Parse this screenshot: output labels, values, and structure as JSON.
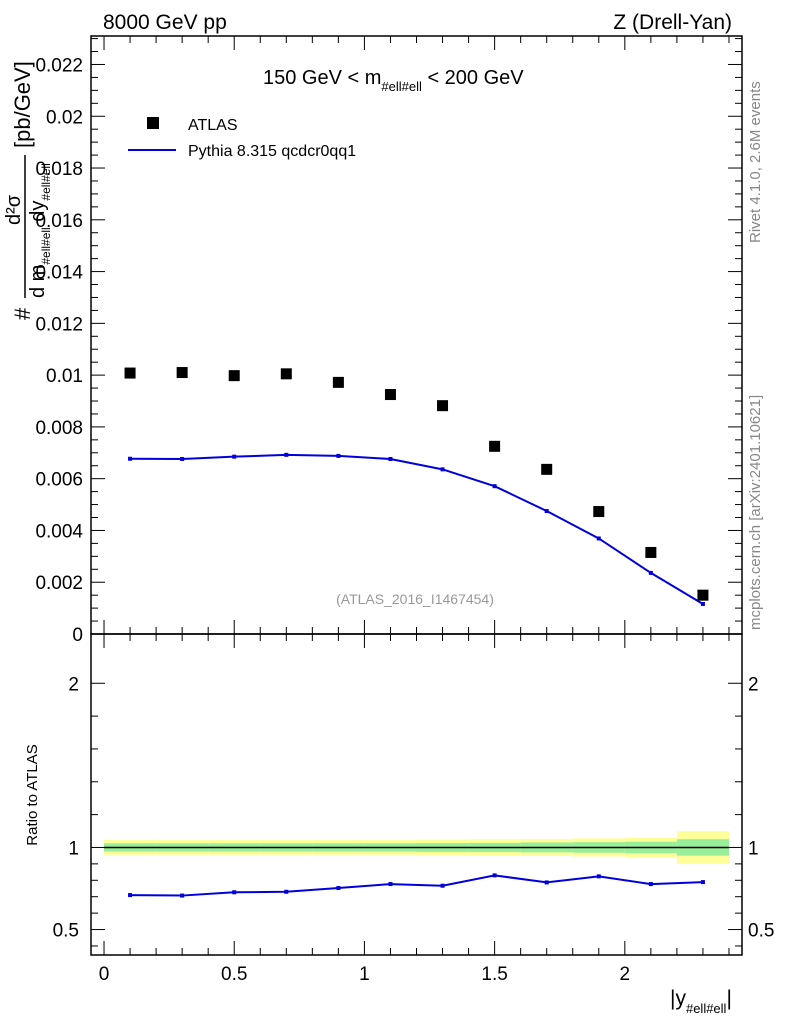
{
  "header": {
    "left": "8000 GeV pp",
    "right": "Z (Drell-Yan)"
  },
  "side_labels": {
    "rivet": "Rivet 4.1.0,  2.6M events",
    "mcplots": "mcplots.cern.ch [arXiv:2401.10621]"
  },
  "chart_data": [
    {
      "type": "scatter",
      "panel": "main",
      "title": "150 GeV < m_{#ell#ell} < 200 GeV",
      "title_parts": {
        "pre": "150 GeV < m",
        "sub": "#ell#ell",
        "post": " < 200 GeV"
      },
      "watermark": "(ATLAS_2016_I1467454)",
      "ylabel_parts": {
        "hash": "#",
        "num": "d²σ",
        "den_a": "d m",
        "den_sub_a": "#ell#ell",
        "den_b": " dy",
        "den_sub_b": "#ell#ell",
        "unit": "[pb/GeV]"
      },
      "xlim": [
        -0.05,
        2.45
      ],
      "ylim": [
        0,
        0.0231
      ],
      "yticks": [
        0,
        0.002,
        0.004,
        0.006,
        0.008,
        0.01,
        0.012,
        0.014,
        0.016,
        0.018,
        0.02,
        0.022
      ],
      "ytick_labels": [
        "0",
        "0.002",
        "0.004",
        "0.006",
        "0.008",
        "0.01",
        "0.012",
        "0.014",
        "0.016",
        "0.018",
        "0.02",
        "0.022"
      ],
      "legend": {
        "position": "top-left",
        "entries": [
          "ATLAS",
          "Pythia 8.315 qcdcr0qq1"
        ]
      },
      "series": [
        {
          "name": "ATLAS",
          "style": "markers",
          "color": "#000000",
          "x": [
            0.1,
            0.3,
            0.5,
            0.7,
            0.9,
            1.1,
            1.3,
            1.5,
            1.7,
            1.9,
            2.1,
            2.3
          ],
          "y": [
            0.01008,
            0.0101,
            0.00998,
            0.01005,
            0.00972,
            0.00925,
            0.00882,
            0.00725,
            0.00636,
            0.00473,
            0.00315,
            0.0015
          ]
        },
        {
          "name": "Pythia 8.315 qcdcr0qq1",
          "style": "line",
          "color": "#0000dd",
          "x": [
            0.1,
            0.3,
            0.5,
            0.7,
            0.9,
            1.1,
            1.3,
            1.5,
            1.7,
            1.9,
            2.1,
            2.3
          ],
          "y": [
            0.00677,
            0.00676,
            0.00685,
            0.00692,
            0.00688,
            0.00676,
            0.00636,
            0.00571,
            0.00475,
            0.00369,
            0.00236,
            0.00116
          ]
        }
      ]
    },
    {
      "type": "line",
      "panel": "ratio",
      "ylabel": "Ratio to ATLAS",
      "xlabel_parts": {
        "pre": "|y",
        "sub": "#ell#ell",
        "post": "|"
      },
      "xlim": [
        -0.05,
        2.45
      ],
      "ylim": [
        0.345,
        2.3
      ],
      "xticks": [
        0,
        0.5,
        1,
        1.5,
        2
      ],
      "xtick_labels": [
        "0",
        "0.5",
        "1",
        "1.5",
        "2"
      ],
      "yticks": [
        0.5,
        1,
        2
      ],
      "ytick_labels": [
        "0.5",
        "1",
        "2"
      ],
      "band_bins": [
        0,
        0.2,
        0.4,
        0.6,
        0.8,
        1.0,
        1.2,
        1.4,
        1.6,
        1.8,
        2.0,
        2.2,
        2.4
      ],
      "uncertainty_yellow": [
        [
          0.955,
          1.045
        ],
        [
          0.955,
          1.045
        ],
        [
          0.955,
          1.045
        ],
        [
          0.955,
          1.045
        ],
        [
          0.955,
          1.045
        ],
        [
          0.955,
          1.045
        ],
        [
          0.952,
          1.048
        ],
        [
          0.95,
          1.05
        ],
        [
          0.948,
          1.052
        ],
        [
          0.945,
          1.055
        ],
        [
          0.94,
          1.06
        ],
        [
          0.9,
          1.1
        ]
      ],
      "uncertainty_green": [
        [
          0.975,
          1.025
        ],
        [
          0.975,
          1.025
        ],
        [
          0.975,
          1.025
        ],
        [
          0.975,
          1.025
        ],
        [
          0.975,
          1.025
        ],
        [
          0.975,
          1.025
        ],
        [
          0.973,
          1.027
        ],
        [
          0.972,
          1.028
        ],
        [
          0.97,
          1.03
        ],
        [
          0.968,
          1.032
        ],
        [
          0.965,
          1.035
        ],
        [
          0.95,
          1.05
        ]
      ],
      "series": [
        {
          "name": "Pythia 8.315 qcdcr0qq1 / ATLAS",
          "color": "#0000dd",
          "x": [
            0.1,
            0.3,
            0.5,
            0.7,
            0.9,
            1.1,
            1.3,
            1.5,
            1.7,
            1.9,
            2.1,
            2.3
          ],
          "y": [
            0.71,
            0.707,
            0.727,
            0.73,
            0.753,
            0.777,
            0.767,
            0.83,
            0.787,
            0.824,
            0.777,
            0.789
          ]
        }
      ]
    }
  ]
}
